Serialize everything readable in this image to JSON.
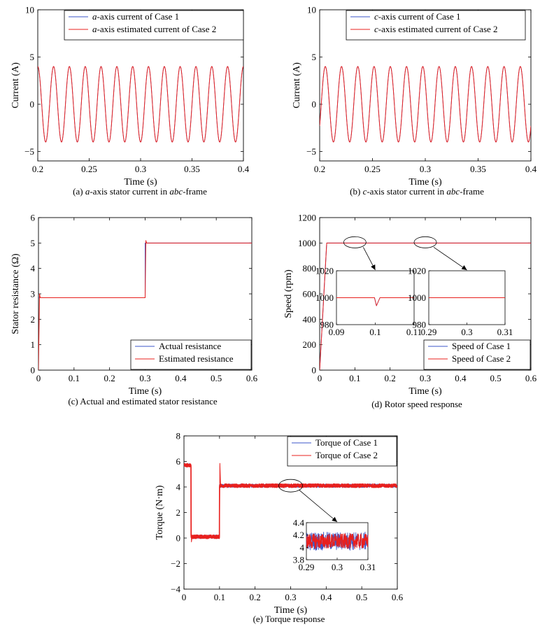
{
  "colors": {
    "case1": "#3b56c8",
    "case2": "#e8201e",
    "axis": "#000000"
  },
  "chart_data": [
    {
      "type": "line",
      "caption": {
        "pre": "(a) ",
        "italic": "a",
        "mid": "-axis stator current in ",
        "italic2": "abc",
        "post": "-frame"
      },
      "xlabel": "Time (s)",
      "ylabel": "Current (A)",
      "xlim": [
        0.2,
        0.4
      ],
      "ylim": [
        -6,
        10
      ],
      "xticks": [
        0.2,
        0.25,
        0.3,
        0.35,
        0.4
      ],
      "xtick_labels": [
        "0.2",
        "0.25",
        "0.3",
        "0.35",
        "0.4"
      ],
      "yticks": [
        -5,
        0,
        5,
        10
      ],
      "ytick_labels": [
        "−5",
        "0",
        "5",
        "10"
      ],
      "legend_position": "top-left",
      "grid": false,
      "series": [
        {
          "name_italic": "a",
          "name": "-axis current of Case 1",
          "color": "#3b56c8",
          "sine": {
            "amplitude": 4,
            "frequency_hz": 65,
            "phase_deg": 90
          }
        },
        {
          "name_italic": "a",
          "name": "-axis estimated current of Case 2",
          "color": "#e8201e",
          "sine": {
            "amplitude": 4,
            "frequency_hz": 65,
            "phase_deg": 90
          }
        }
      ]
    },
    {
      "type": "line",
      "caption": {
        "pre": "(b) ",
        "italic": "c",
        "mid": "-axis stator current in ",
        "italic2": "abc",
        "post": "-frame"
      },
      "xlabel": "Time (s)",
      "ylabel": "Current (A)",
      "xlim": [
        0.2,
        0.4
      ],
      "ylim": [
        -6,
        10
      ],
      "xticks": [
        0.2,
        0.25,
        0.3,
        0.35,
        0.4
      ],
      "xtick_labels": [
        "0.2",
        "0.25",
        "0.3",
        "0.35",
        "0.4"
      ],
      "yticks": [
        -5,
        0,
        5,
        10
      ],
      "ytick_labels": [
        "−5",
        "0",
        "5",
        "10"
      ],
      "legend_position": "top-left",
      "grid": false,
      "series": [
        {
          "name_italic": "c",
          "name": "-axis current of Case 1",
          "color": "#3b56c8",
          "sine": {
            "amplitude": 4,
            "frequency_hz": 65,
            "phase_deg": -35
          }
        },
        {
          "name_italic": "c",
          "name": "-axis estimated current of Case 2",
          "color": "#e8201e",
          "sine": {
            "amplitude": 4,
            "frequency_hz": 65,
            "phase_deg": -35
          }
        }
      ]
    },
    {
      "type": "line",
      "caption": "(c) Actual and estimated stator resistance",
      "xlabel": "Time (s)",
      "ylabel": "Stator resistance (Ω)",
      "xlim": [
        0,
        0.6
      ],
      "ylim": [
        0,
        6
      ],
      "xticks": [
        0,
        0.1,
        0.2,
        0.3,
        0.4,
        0.5,
        0.6
      ],
      "xtick_labels": [
        "0",
        "0.1",
        "0.2",
        "0.3",
        "0.4",
        "0.5",
        "0.6"
      ],
      "yticks": [
        0,
        1,
        2,
        3,
        4,
        5,
        6
      ],
      "ytick_labels": [
        "0",
        "1",
        "2",
        "3",
        "4",
        "5",
        "6"
      ],
      "legend_position": "bottom-right",
      "grid": false,
      "series": [
        {
          "name": "Actual resistance",
          "color": "#3b56c8",
          "x": [
            0,
            0.3,
            0.3,
            0.6
          ],
          "y": [
            2.85,
            2.85,
            5.0,
            5.0
          ]
        },
        {
          "name": "Estimated resistance",
          "color": "#e8201e",
          "x": [
            0,
            0.003,
            0.005,
            0.3,
            0.302,
            0.304,
            0.6
          ],
          "y": [
            0,
            3.0,
            2.85,
            2.85,
            5.1,
            5.0,
            5.0
          ]
        }
      ]
    },
    {
      "type": "line",
      "caption": "(d) Rotor speed response",
      "xlabel": "Time (s)",
      "ylabel": "Speed (rpm)",
      "xlim": [
        0,
        0.6
      ],
      "ylim": [
        0,
        1200
      ],
      "xticks": [
        0,
        0.1,
        0.2,
        0.3,
        0.4,
        0.5,
        0.6
      ],
      "xtick_labels": [
        "0",
        "0.1",
        "0.2",
        "0.3",
        "0.4",
        "0.5",
        "0.6"
      ],
      "yticks": [
        0,
        200,
        400,
        600,
        800,
        1000,
        1200
      ],
      "ytick_labels": [
        "0",
        "200",
        "400",
        "600",
        "800",
        "1000",
        "1200"
      ],
      "legend_position": "bottom-right",
      "grid": false,
      "series": [
        {
          "name": "Speed of Case 1",
          "color": "#3b56c8",
          "x": [
            0,
            0.02,
            0.6
          ],
          "y": [
            0,
            1000,
            1000
          ]
        },
        {
          "name": "Speed of Case 2",
          "color": "#e8201e",
          "x": [
            0,
            0.02,
            0.6
          ],
          "y": [
            0,
            1000,
            1000
          ]
        }
      ],
      "insets": [
        {
          "xlim": [
            0.09,
            0.11
          ],
          "ylim": [
            980,
            1020
          ],
          "xticks": [
            0.09,
            0.1,
            0.11
          ],
          "xtick_labels": [
            "0.09",
            "0.1",
            "0.11"
          ],
          "yticks": [
            980,
            1000,
            1020
          ],
          "ytick_labels": [
            "980",
            "1000",
            "1020"
          ],
          "x": [
            0.09,
            0.0998,
            0.1003,
            0.1012,
            0.1025,
            0.11
          ],
          "y": [
            1000,
            1000,
            994,
            1000,
            1000,
            1000
          ]
        },
        {
          "xlim": [
            0.29,
            0.31
          ],
          "ylim": [
            980,
            1020
          ],
          "xticks": [
            0.29,
            0.3,
            0.31
          ],
          "xtick_labels": [
            "0.29",
            "0.3",
            "0.31"
          ],
          "yticks": [
            980,
            1000,
            1020
          ],
          "ytick_labels": [
            "980",
            "1000",
            "1020"
          ],
          "x": [
            0.29,
            0.31
          ],
          "y": [
            1000,
            1000
          ]
        }
      ]
    },
    {
      "type": "line",
      "caption": "(e) Torque response",
      "xlabel": "Time (s)",
      "ylabel": "Torque (N·m)",
      "xlim": [
        0,
        0.6
      ],
      "ylim": [
        -4,
        8
      ],
      "xticks": [
        0,
        0.1,
        0.2,
        0.3,
        0.4,
        0.5,
        0.6
      ],
      "xtick_labels": [
        "0",
        "0.1",
        "0.2",
        "0.3",
        "0.4",
        "0.5",
        "0.6"
      ],
      "yticks": [
        -4,
        -2,
        0,
        2,
        4,
        6,
        8
      ],
      "ytick_labels": [
        "−4",
        "−2",
        "0",
        "2",
        "4",
        "6",
        "8"
      ],
      "legend_position": "top-right",
      "grid": false,
      "series": [
        {
          "name": "Torque of Case 1",
          "color": "#3b56c8",
          "x": [
            0,
            0.02,
            0.02,
            0.1,
            0.1,
            0.6
          ],
          "y": [
            5.7,
            5.7,
            0.1,
            0.1,
            4.1,
            4.1
          ]
        },
        {
          "name": "Torque of Case 2",
          "color": "#e8201e",
          "x": [
            0,
            0.02,
            0.02,
            0.1,
            0.1,
            0.6
          ],
          "y": [
            5.7,
            5.7,
            0.1,
            0.1,
            4.1,
            4.1
          ]
        }
      ],
      "insets": [
        {
          "xlim": [
            0.29,
            0.31
          ],
          "ylim": [
            3.8,
            4.4
          ],
          "xticks": [
            0.29,
            0.3,
            0.31
          ],
          "xtick_labels": [
            "0.29",
            "0.3",
            "0.31"
          ],
          "yticks": [
            3.8,
            4,
            4.2,
            4.4
          ],
          "ytick_labels": [
            "3.8",
            "4",
            "4.2",
            "4.4"
          ],
          "mean": 4.1,
          "noise": 0.15
        }
      ]
    }
  ]
}
